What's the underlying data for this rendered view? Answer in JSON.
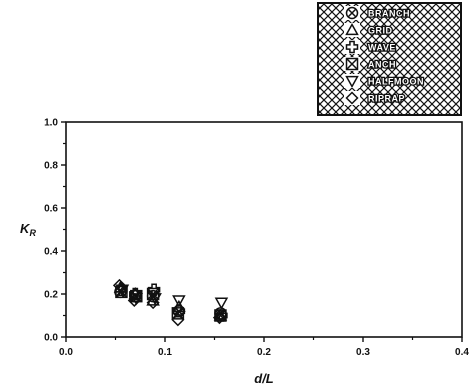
{
  "chart_data": {
    "type": "scatter",
    "title": "",
    "xlabel": "d/L",
    "ylabel": "K",
    "ylabel_subscript": "R",
    "xlim": [
      0.0,
      0.4
    ],
    "ylim": [
      0.0,
      1.0
    ],
    "xticks": [
      "0.0",
      "0.1",
      "0.2",
      "0.3",
      "0.4"
    ],
    "yticks": [
      "0.0",
      "0.2",
      "0.4",
      "0.6",
      "0.8",
      "1.0"
    ],
    "grid": false,
    "legend_position": "top-right",
    "series": [
      {
        "name": "BRANCH",
        "marker": "circle-x",
        "x": [
          0.055,
          0.07,
          0.088,
          0.114,
          0.156
        ],
        "y": [
          0.21,
          0.19,
          0.19,
          0.12,
          0.11
        ]
      },
      {
        "name": "GRID",
        "marker": "triangle-up",
        "x": [
          0.055,
          0.07,
          0.088,
          0.114,
          0.156
        ],
        "y": [
          0.23,
          0.2,
          0.17,
          0.14,
          0.1
        ]
      },
      {
        "name": "WAVE",
        "marker": "cross",
        "x": [
          0.056,
          0.07,
          0.089,
          0.114,
          0.157
        ],
        "y": [
          0.22,
          0.2,
          0.22,
          0.12,
          0.1
        ]
      },
      {
        "name": "ANCH",
        "marker": "square-x",
        "x": [
          0.056,
          0.071,
          0.088,
          0.113,
          0.156
        ],
        "y": [
          0.21,
          0.19,
          0.2,
          0.11,
          0.1
        ]
      },
      {
        "name": "HALFMOON",
        "marker": "triangle-down",
        "x": [
          0.057,
          0.071,
          0.09,
          0.114,
          0.157
        ],
        "y": [
          0.22,
          0.18,
          0.18,
          0.17,
          0.16
        ]
      },
      {
        "name": "RIPRAP",
        "marker": "diamond",
        "x": [
          0.054,
          0.069,
          0.088,
          0.113,
          0.155
        ],
        "y": [
          0.24,
          0.17,
          0.16,
          0.08,
          0.09
        ]
      }
    ]
  }
}
